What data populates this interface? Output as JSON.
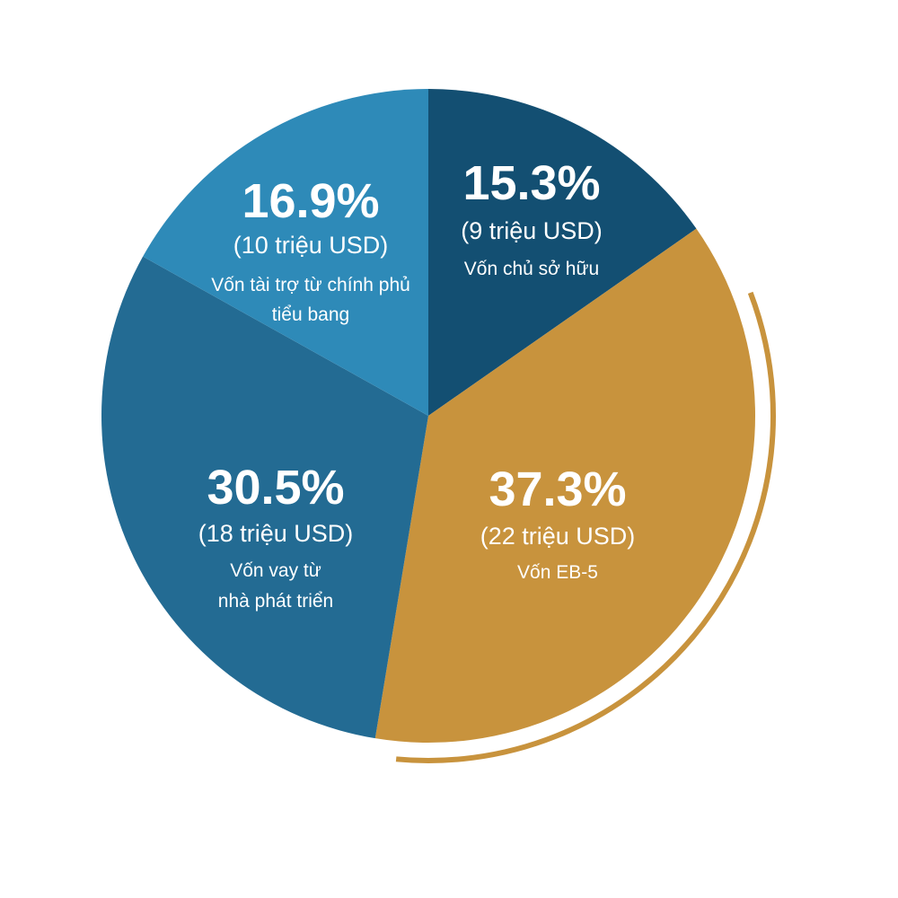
{
  "chart_data": {
    "type": "pie",
    "slices": [
      {
        "percent": 15.3,
        "value_text": "15.3%",
        "amount": "(9 triệu USD)",
        "label": [
          "Vốn chủ sở hữu"
        ],
        "color": "#134f72"
      },
      {
        "percent": 37.3,
        "value_text": "37.3%",
        "amount": "(22 triệu USD)",
        "label": [
          "Vốn EB-5"
        ],
        "color": "#c8933d"
      },
      {
        "percent": 30.5,
        "value_text": "30.5%",
        "amount": "(18 triệu USD)",
        "label": [
          "Vốn vay từ",
          "nhà phát triển"
        ],
        "color": "#236b93"
      },
      {
        "percent": 16.9,
        "value_text": "16.9%",
        "amount": "(10 triệu USD)",
        "label": [
          "Vốn tài trợ từ chính phủ",
          "tiểu bang"
        ],
        "color": "#2e8ab8"
      }
    ],
    "start_angle": "12 o'clock",
    "direction": "clockwise",
    "highlight_arc": {
      "slice": "Vốn EB-5",
      "color": "#c8933d"
    }
  }
}
